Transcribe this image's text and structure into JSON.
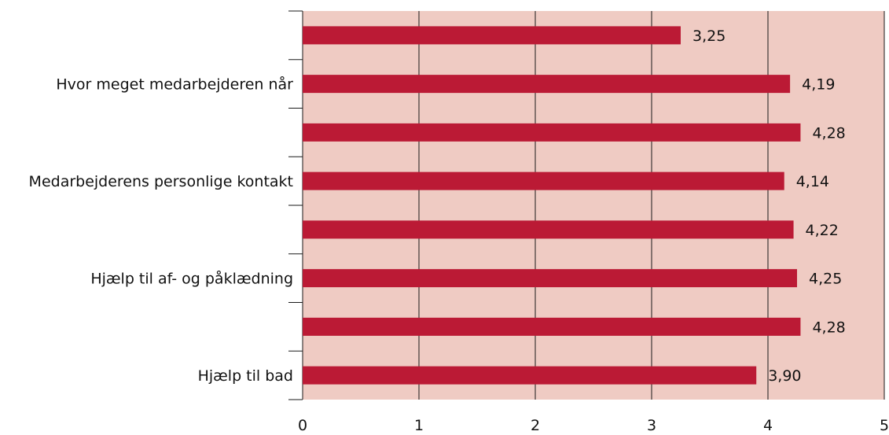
{
  "chart_data": {
    "type": "bar",
    "orientation": "horizontal",
    "categories": [
      "",
      "Hvor meget medarbejderen når",
      "",
      "Medarbejderens personlige kontakt",
      "",
      "Hjælp til af- og påklædning",
      "",
      "Hjælp til bad"
    ],
    "values": [
      3.25,
      4.19,
      4.28,
      4.14,
      4.22,
      4.25,
      4.28,
      3.9
    ],
    "value_labels": [
      "3,25",
      "4,19",
      "4,28",
      "4,14",
      "4,22",
      "4,25",
      "4,28",
      "3,90"
    ],
    "xlim": [
      0,
      5
    ],
    "x_ticks": [
      0,
      1,
      2,
      3,
      4,
      5
    ],
    "x_tick_labels": [
      "0",
      "1",
      "2",
      "3",
      "4",
      "5"
    ],
    "grid": true,
    "colors": {
      "bar": "#bb1a35",
      "plot_background": "#efcbc3"
    }
  }
}
